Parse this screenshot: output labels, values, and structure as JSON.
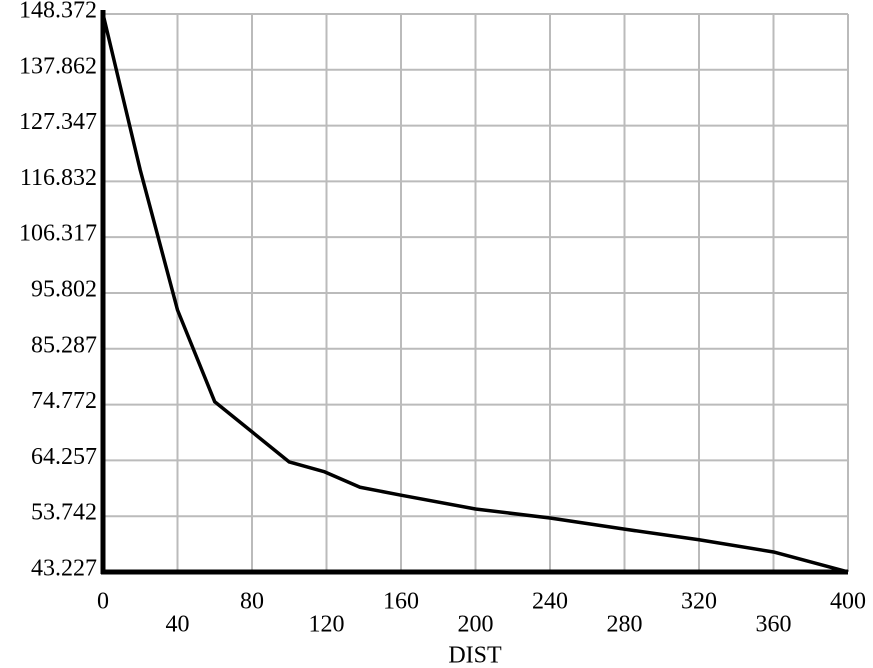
{
  "chart_data": {
    "type": "line",
    "x_label": "DIST",
    "x": [
      0,
      20,
      30,
      40,
      60,
      100,
      119,
      138,
      160,
      200,
      240,
      280,
      320,
      360,
      400
    ],
    "values": [
      148.37,
      118.97,
      105.8,
      92.6,
      75.3,
      63.96,
      62.1,
      59.2,
      57.7,
      55.1,
      53.4,
      51.3,
      49.3,
      47.0,
      43.23
    ],
    "color": "#000000",
    "xlim": [
      0,
      400
    ],
    "xticks": [
      0,
      40,
      80,
      120,
      160,
      200,
      240,
      280,
      320,
      360,
      400
    ],
    "ylim": [
      43.227,
      148.372
    ],
    "yticks": [
      43.227,
      53.742,
      64.257,
      74.772,
      85.287,
      95.802,
      106.317,
      116.832,
      127.347,
      137.862,
      148.372
    ],
    "grid": true
  }
}
